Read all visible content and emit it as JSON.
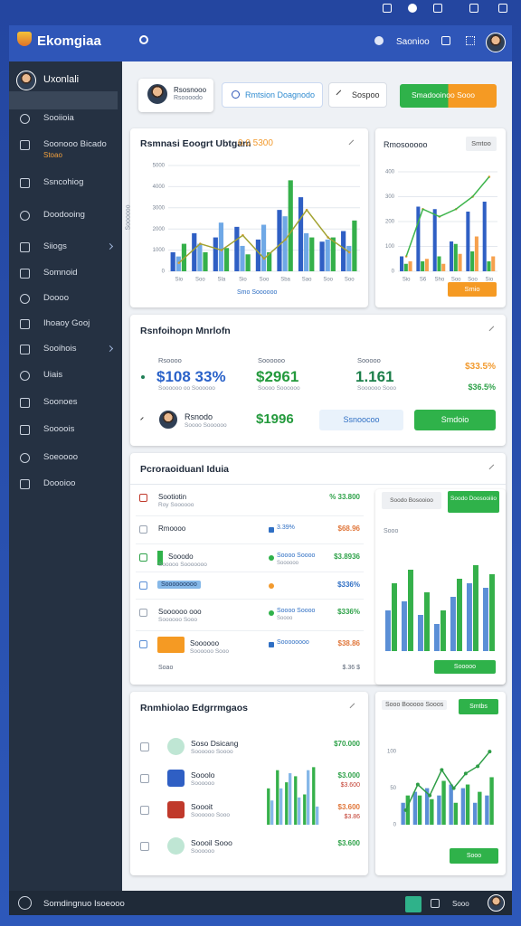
{
  "window": {
    "app_name": "Ekomgiaa",
    "search_label": "Saonioo"
  },
  "sidebar": {
    "user": "Uxonlali",
    "items": [
      {
        "label": "Sooiioia"
      },
      {
        "label": "Soonooo Bicado",
        "sub": "Stoao"
      },
      {
        "label": "Ssncohiog"
      },
      {
        "label": "Doodooing"
      },
      {
        "label": "Siiogs"
      },
      {
        "label": "Somnoid"
      },
      {
        "label": "Doooo"
      },
      {
        "label": "Ihoaoy Gooj"
      },
      {
        "label": "Sooihois"
      },
      {
        "label": "Uiais"
      },
      {
        "label": "Soonoes"
      },
      {
        "label": "Soooois"
      },
      {
        "label": "Soeoooo"
      },
      {
        "label": "Doooioo"
      }
    ]
  },
  "toolbar": {
    "profile_name": "Rsosnooo",
    "profile_sub": "Rsoooodo",
    "search": "Rmtsion Doagnodo",
    "filter": "Sospoo",
    "action": "Smadooinoo Sooo"
  },
  "chart_data": [
    {
      "type": "bar",
      "title": "Rsmnasi Eoogrt Ubtgam",
      "subtitle": "0.0 5300",
      "x_label": "Smo Soooooo",
      "y_label": "Soooooo",
      "grid": true,
      "categories": [
        "Sio",
        "Soo",
        "Sla",
        "Sio",
        "Soo",
        "Sba",
        "Sao",
        "Soo",
        "Soo"
      ],
      "ylim": [
        0,
        5000
      ],
      "yticks": [
        0,
        1000,
        2000,
        3000,
        4000,
        5000
      ],
      "series": [
        {
          "color": "#2f5fc4",
          "values": [
            900,
            1800,
            1600,
            2100,
            1500,
            2900,
            3500,
            1400,
            1900
          ]
        },
        {
          "color": "#6fa8e6",
          "values": [
            700,
            1300,
            2300,
            1200,
            2200,
            2600,
            1800,
            1500,
            1200
          ]
        },
        {
          "color": "#35b04a",
          "values": [
            1300,
            900,
            1100,
            800,
            900,
            4300,
            1600,
            1600,
            2400
          ]
        },
        {
          "type": "line",
          "color": "#a3a332",
          "values": [
            400,
            1300,
            1000,
            1700,
            600,
            1500,
            2900,
            1600,
            900
          ]
        }
      ]
    },
    {
      "type": "bar",
      "title": "Rmosooooo",
      "button": "Smtoo",
      "footer_button": "Smio",
      "grid": true,
      "categories": [
        "Sio",
        "S6",
        "Sho",
        "Soo",
        "Soo",
        "Sio"
      ],
      "ylim": [
        0,
        400
      ],
      "yticks": [
        0,
        100,
        200,
        300,
        400
      ],
      "series": [
        {
          "color": "#2f5fc4",
          "values": [
            60,
            260,
            250,
            120,
            240,
            280
          ]
        },
        {
          "color": "#35b04a",
          "values": [
            30,
            40,
            60,
            110,
            80,
            40
          ]
        },
        {
          "color": "#f6a04d",
          "values": [
            40,
            50,
            30,
            70,
            140,
            60
          ]
        },
        {
          "type": "line",
          "color": "#3cb44b",
          "values": [
            60,
            250,
            220,
            250,
            300,
            380
          ]
        }
      ]
    },
    {
      "type": "bar",
      "title": "Sooo",
      "buttons": [
        "Soodo Bosooioo",
        "Soodo Doosooiiio"
      ],
      "footer_button": "Sooooo",
      "categories": [
        null,
        null,
        null,
        null,
        null,
        null,
        null
      ],
      "ylim": [
        0,
        100
      ],
      "series": [
        {
          "color": "#5b8fd6",
          "values": [
            45,
            55,
            40,
            30,
            60,
            75,
            70
          ]
        },
        {
          "color": "#35b04a",
          "values": [
            75,
            90,
            65,
            45,
            80,
            95,
            85
          ]
        }
      ]
    },
    {
      "type": "bar",
      "title": "Sooo Booooo Sooos",
      "button": "Smtbs",
      "footer_button": "Sooo",
      "markers": true,
      "categories": [
        null,
        null,
        null,
        null,
        null,
        null,
        null,
        null
      ],
      "ylim": [
        0,
        120
      ],
      "yticks": [
        0,
        50,
        100
      ],
      "series": [
        {
          "color": "#5b8fd6",
          "values": [
            30,
            45,
            50,
            40,
            55,
            50,
            30,
            40
          ]
        },
        {
          "color": "#35b04a",
          "values": [
            40,
            40,
            35,
            60,
            30,
            55,
            45,
            65
          ]
        },
        {
          "type": "line",
          "color": "#2e9d46",
          "values": [
            20,
            55,
            40,
            75,
            50,
            70,
            80,
            100
          ]
        }
      ]
    },
    {
      "type": "bar",
      "categories": [
        null,
        null,
        null,
        null,
        null,
        null
      ],
      "ylim": [
        0,
        100
      ],
      "series": [
        {
          "color": "#35b04a",
          "values": [
            60,
            90,
            70,
            80,
            50,
            95
          ]
        },
        {
          "color": "#86b8e8",
          "values": [
            40,
            60,
            85,
            45,
            90,
            30
          ]
        }
      ]
    }
  ],
  "summary": {
    "title": "Rsnfoihopn Mnrlofn",
    "stats": [
      {
        "label": "Rsoooo",
        "value": "$108 33%",
        "sub": "Soooooo oo Soooooo"
      },
      {
        "label": "Soooooo",
        "value": "$2961",
        "sub": "Soooo Soooooo"
      },
      {
        "label": "Sooooo",
        "value": "1.161",
        "sub": "Soooooo Sooo"
      }
    ],
    "change": "$33.5%",
    "change_sub": "$36.5%",
    "person_name": "Rsnodo",
    "person_sub": "Soooo Soooooo",
    "amount": "$1996",
    "button_secondary": "Ssnoocoo",
    "button_primary": "Smdoio"
  },
  "portfolio": {
    "title": "Pcroraoiduanl Iduia",
    "rows": [
      {
        "name": "Sootiotin",
        "sub": "Roy Soooooo",
        "amount": "% 33.800"
      },
      {
        "name": "Rmoooo",
        "status": "3.39%",
        "amount": "$68.96"
      },
      {
        "name": "Sooodo",
        "sub": "Sooooo Sooooooo",
        "status": "Soooo Soooo",
        "status_sub": "Soooooo",
        "amount": "$3.8936"
      },
      {
        "name": "Sooooooooo",
        "amount": "$336%"
      },
      {
        "name": "Soooooo ooo",
        "sub": "Soooooo Sooo",
        "status": "Soooo Soooo",
        "status_sub": "Soooo",
        "amount": "$336%"
      },
      {
        "name": "Soooooo",
        "sub": "Soooooo Sooo",
        "status": "Soooooooo",
        "amount": "$38.86"
      }
    ],
    "footer_label": "Soao",
    "footer_amount": "$.36 $"
  },
  "trends": {
    "title": "Rnmhiolao Edgrrmgaos",
    "rows": [
      {
        "name": "Soso Dsicang",
        "sub": "Soooooo Soooo",
        "amount": "$70.000"
      },
      {
        "name": "Sooolo",
        "sub": "Soooooo",
        "amount": "$3.000",
        "amount_sub": "$3.600"
      },
      {
        "name": "Soooit",
        "sub": "Soooooo Sooo",
        "amount": "$3.600",
        "amount_sub": "$3.86"
      },
      {
        "name": "Soooil Sooo",
        "sub": "Soooooo",
        "amount": "$3.600"
      }
    ]
  },
  "status_bar": {
    "label": "Somdingnuo Isoeooo",
    "badge": "Sooo"
  }
}
